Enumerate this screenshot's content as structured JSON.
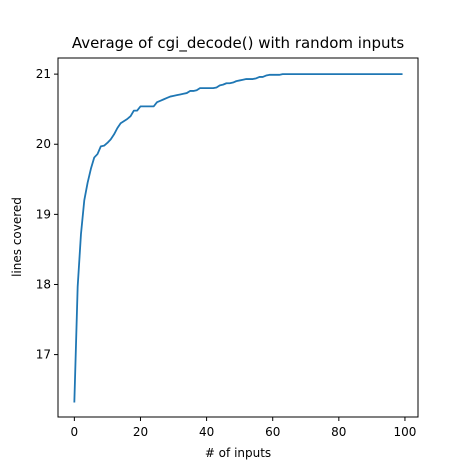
{
  "chart_data": {
    "type": "line",
    "title": "Average of cgi_decode() with random inputs",
    "xlabel": "# of inputs",
    "ylabel": "lines covered",
    "xlim": [
      -4.95,
      103.95
    ],
    "ylim": [
      16.11,
      21.23
    ],
    "x_ticks": [
      0,
      20,
      40,
      60,
      80,
      100
    ],
    "y_ticks": [
      17,
      18,
      19,
      20,
      21
    ],
    "grid": false,
    "series": [
      {
        "color": "#1f77b4",
        "x": [
          0,
          1,
          2,
          3,
          4,
          5,
          6,
          7,
          8,
          9,
          10,
          11,
          12,
          13,
          14,
          15,
          16,
          17,
          18,
          19,
          20,
          21,
          22,
          23,
          24,
          25,
          26,
          27,
          28,
          29,
          30,
          31,
          32,
          33,
          34,
          35,
          36,
          37,
          38,
          39,
          40,
          41,
          42,
          43,
          44,
          45,
          46,
          47,
          48,
          49,
          50,
          51,
          52,
          53,
          54,
          55,
          56,
          57,
          58,
          59,
          60,
          61,
          62,
          63,
          64,
          65,
          66,
          67,
          68,
          69,
          70,
          71,
          72,
          73,
          74,
          75,
          76,
          77,
          78,
          79,
          80,
          81,
          82,
          83,
          84,
          85,
          86,
          87,
          88,
          89,
          90,
          91,
          92,
          93,
          94,
          95,
          96,
          97,
          98,
          99
        ],
        "y": [
          16.33,
          17.97,
          18.72,
          19.2,
          19.45,
          19.65,
          19.81,
          19.86,
          19.97,
          19.98,
          20.02,
          20.07,
          20.14,
          20.23,
          20.3,
          20.33,
          20.36,
          20.4,
          20.48,
          20.48,
          20.54,
          20.54,
          20.54,
          20.54,
          20.54,
          20.6,
          20.62,
          20.64,
          20.66,
          20.68,
          20.69,
          20.7,
          20.71,
          20.72,
          20.73,
          20.76,
          20.76,
          20.77,
          20.8,
          20.8,
          20.8,
          20.8,
          20.8,
          20.81,
          20.84,
          20.85,
          20.87,
          20.87,
          20.88,
          20.9,
          20.91,
          20.92,
          20.93,
          20.93,
          20.93,
          20.94,
          20.96,
          20.96,
          20.98,
          20.99,
          20.99,
          20.99,
          20.99,
          21.0,
          21.0,
          21.0,
          21.0,
          21.0,
          21.0,
          21.0,
          21.0,
          21.0,
          21.0,
          21.0,
          21.0,
          21.0,
          21.0,
          21.0,
          21.0,
          21.0,
          21.0,
          21.0,
          21.0,
          21.0,
          21.0,
          21.0,
          21.0,
          21.0,
          21.0,
          21.0,
          21.0,
          21.0,
          21.0,
          21.0,
          21.0,
          21.0,
          21.0,
          21.0,
          21.0,
          21.0
        ]
      }
    ]
  }
}
